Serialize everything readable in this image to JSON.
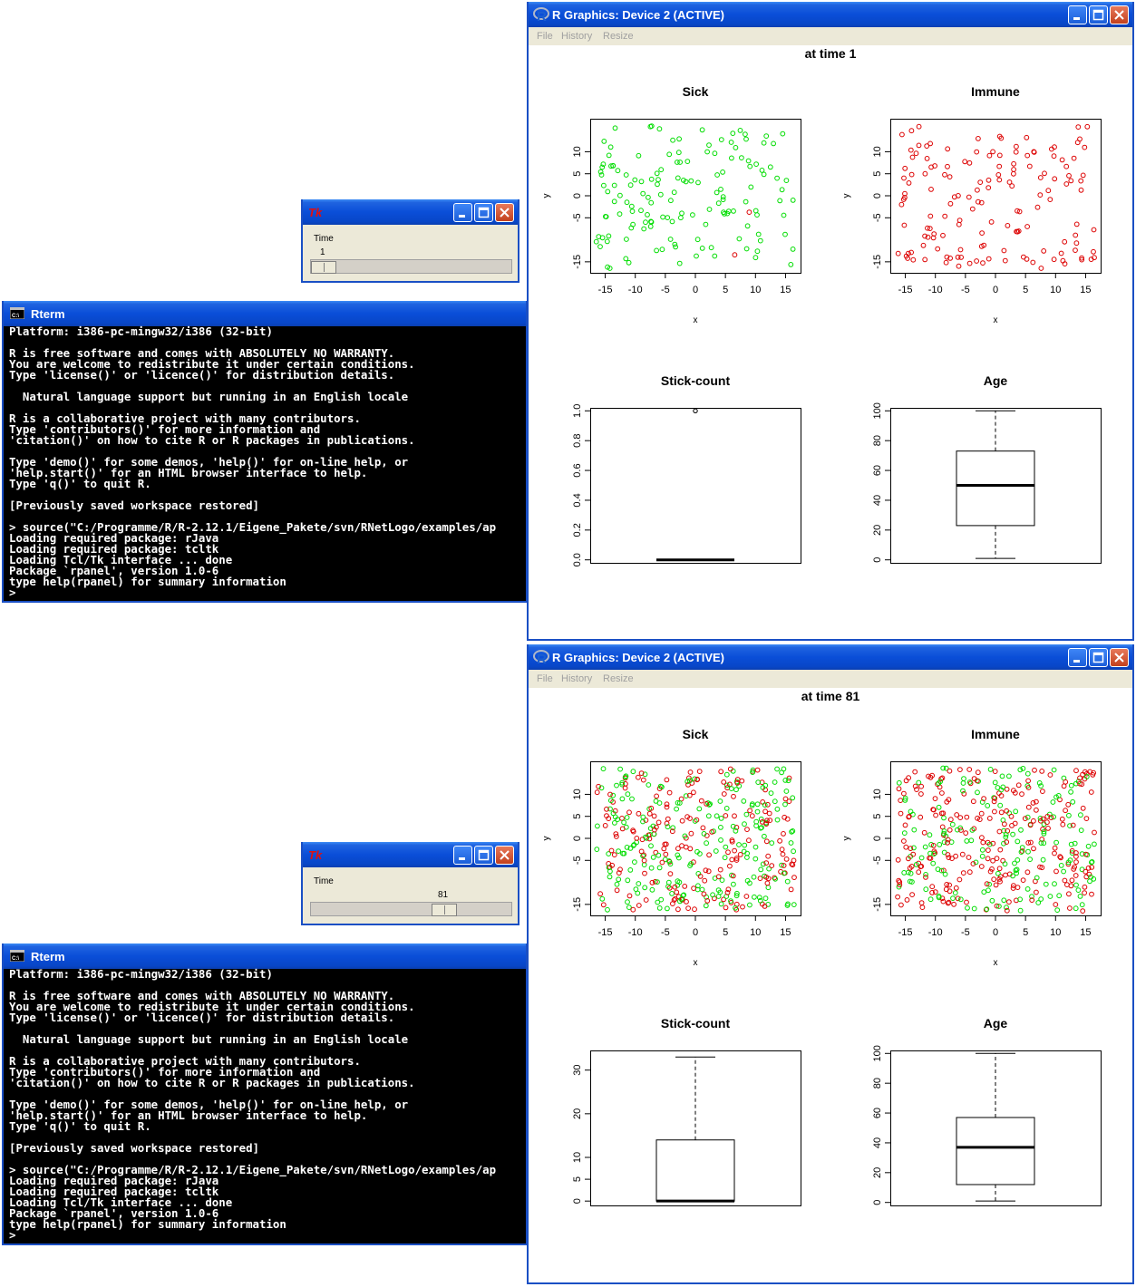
{
  "graphics_window_title": "R Graphics: Device 2 (ACTIVE)",
  "graphics_menu": [
    "File",
    "History",
    "Resize"
  ],
  "tk_window_title": "Tk",
  "tk_slider_label": "Time",
  "terminal_title": "Rterm",
  "terminal_lines": [
    "Platform: i386-pc-mingw32/i386 (32-bit)",
    "",
    "R is free software and comes with ABSOLUTELY NO WARRANTY.",
    "You are welcome to redistribute it under certain conditions.",
    "Type 'license()' or 'licence()' for distribution details.",
    "",
    "  Natural language support but running in an English locale",
    "",
    "R is a collaborative project with many contributors.",
    "Type 'contributors()' for more information and",
    "'citation()' on how to cite R or R packages in publications.",
    "",
    "Type 'demo()' for some demos, 'help()' for on-line help, or",
    "'help.start()' for an HTML browser interface to help.",
    "Type 'q()' to quit R.",
    "",
    "[Previously saved workspace restored]",
    "",
    "> source(\"C:/Programme/R/R-2.12.1/Eigene_Pakete/svn/RNetLogo/examples/ap",
    "Loading required package: rJava",
    "Loading required package: tcltk",
    "Loading Tcl/Tk interface ... done",
    "Package `rpanel', version 1.0-6",
    "type help(rpanel) for summary information",
    ">"
  ],
  "colors": {
    "healthy": "#00dd00",
    "sick": "#dd0000",
    "xp_blue": "#0a4ed8"
  },
  "snapshots": [
    {
      "time_value": "1",
      "slider_fraction": 0.0,
      "main_title": "at time  1",
      "chart_data": [
        {
          "type": "scatter",
          "title": "Sick",
          "xlabel": "x",
          "ylabel": "y",
          "xlim": [
            -17.5,
            17.5
          ],
          "ylim": [
            -17.5,
            17.5
          ],
          "xticks": [
            -15,
            -10,
            -5,
            0,
            5,
            10,
            15
          ],
          "yticks": [
            -15,
            -5,
            0,
            5,
            10
          ],
          "n_points": 150,
          "share_sick": 0.01,
          "seed": 11
        },
        {
          "type": "scatter",
          "title": "Immune",
          "xlabel": "x",
          "ylabel": "y",
          "xlim": [
            -17.5,
            17.5
          ],
          "ylim": [
            -17.5,
            17.5
          ],
          "xticks": [
            -15,
            -10,
            -5,
            0,
            5,
            10,
            15
          ],
          "yticks": [
            -15,
            -5,
            0,
            5,
            10
          ],
          "n_points": 150,
          "share_sick": 1.0,
          "seed": 23
        },
        {
          "type": "box",
          "title": "Stick-count",
          "ylim": [
            -0.02,
            1.02
          ],
          "yticks": [
            0.0,
            0.2,
            0.4,
            0.6,
            0.8,
            1.0
          ],
          "min": 0,
          "q1": 0,
          "median": 0,
          "q3": 0,
          "max": 0,
          "outliers": [
            1.0
          ]
        },
        {
          "type": "box",
          "title": "Age",
          "ylim": [
            -2,
            102
          ],
          "yticks": [
            0,
            20,
            40,
            60,
            80,
            100
          ],
          "min": 1,
          "q1": 23,
          "median": 50,
          "q3": 73,
          "max": 100,
          "outliers": []
        }
      ]
    },
    {
      "time_value": "81",
      "slider_fraction": 0.69,
      "main_title": "at time  81",
      "chart_data": [
        {
          "type": "scatter",
          "title": "Sick",
          "xlabel": "x",
          "ylabel": "y",
          "xlim": [
            -17.5,
            17.5
          ],
          "ylim": [
            -17.5,
            17.5
          ],
          "xticks": [
            -15,
            -10,
            -5,
            0,
            5,
            10,
            15
          ],
          "yticks": [
            -15,
            -5,
            0,
            5,
            10
          ],
          "n_points": 420,
          "share_sick": 0.5,
          "seed": 37
        },
        {
          "type": "scatter",
          "title": "Immune",
          "xlabel": "x",
          "ylabel": "y",
          "xlim": [
            -17.5,
            17.5
          ],
          "ylim": [
            -17.5,
            17.5
          ],
          "xticks": [
            -15,
            -10,
            -5,
            0,
            5,
            10,
            15
          ],
          "yticks": [
            -15,
            -5,
            0,
            5,
            10
          ],
          "n_points": 420,
          "share_sick": 0.6,
          "seed": 41
        },
        {
          "type": "box",
          "title": "Stick-count",
          "ylim": [
            -1,
            34.5
          ],
          "yticks": [
            0,
            5,
            10,
            20,
            30
          ],
          "min": 0,
          "q1": 0,
          "median": 0,
          "q3": 14,
          "max": 33,
          "outliers": []
        },
        {
          "type": "box",
          "title": "Age",
          "ylim": [
            -2,
            102
          ],
          "yticks": [
            0,
            20,
            40,
            60,
            80,
            100
          ],
          "min": 1,
          "q1": 12,
          "median": 37,
          "q3": 57,
          "max": 100,
          "outliers": []
        }
      ]
    }
  ]
}
